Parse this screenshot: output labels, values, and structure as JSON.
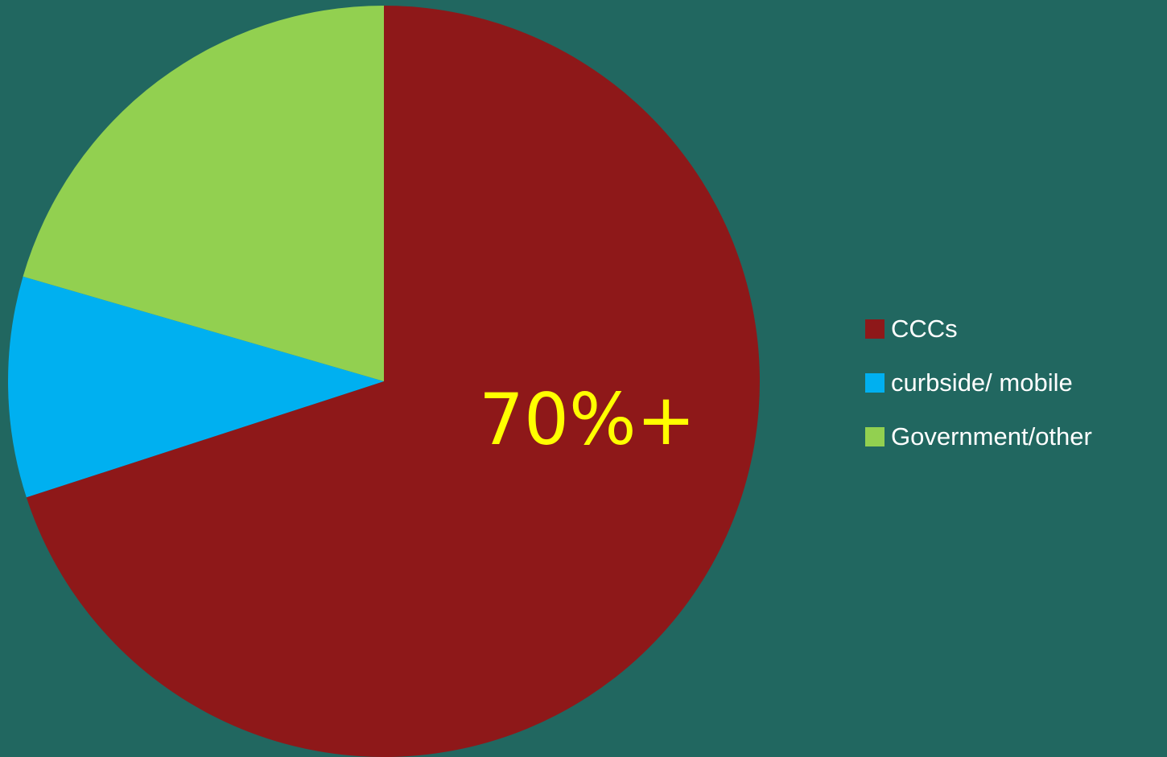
{
  "chart_data": {
    "type": "pie",
    "slices": [
      {
        "label": "CCCs",
        "value": 70,
        "color": "#8E1819"
      },
      {
        "label": "curbside/ mobile",
        "value": 9.5,
        "color": "#00B0F0"
      },
      {
        "label": "Government/other",
        "value": 20.5,
        "color": "#92D050"
      }
    ],
    "annotation": "70%+",
    "annotation_color": "#FFFF00",
    "legend_position": "right",
    "start_angle_deg": 0,
    "direction": "clockwise"
  },
  "background_color": "#216760"
}
